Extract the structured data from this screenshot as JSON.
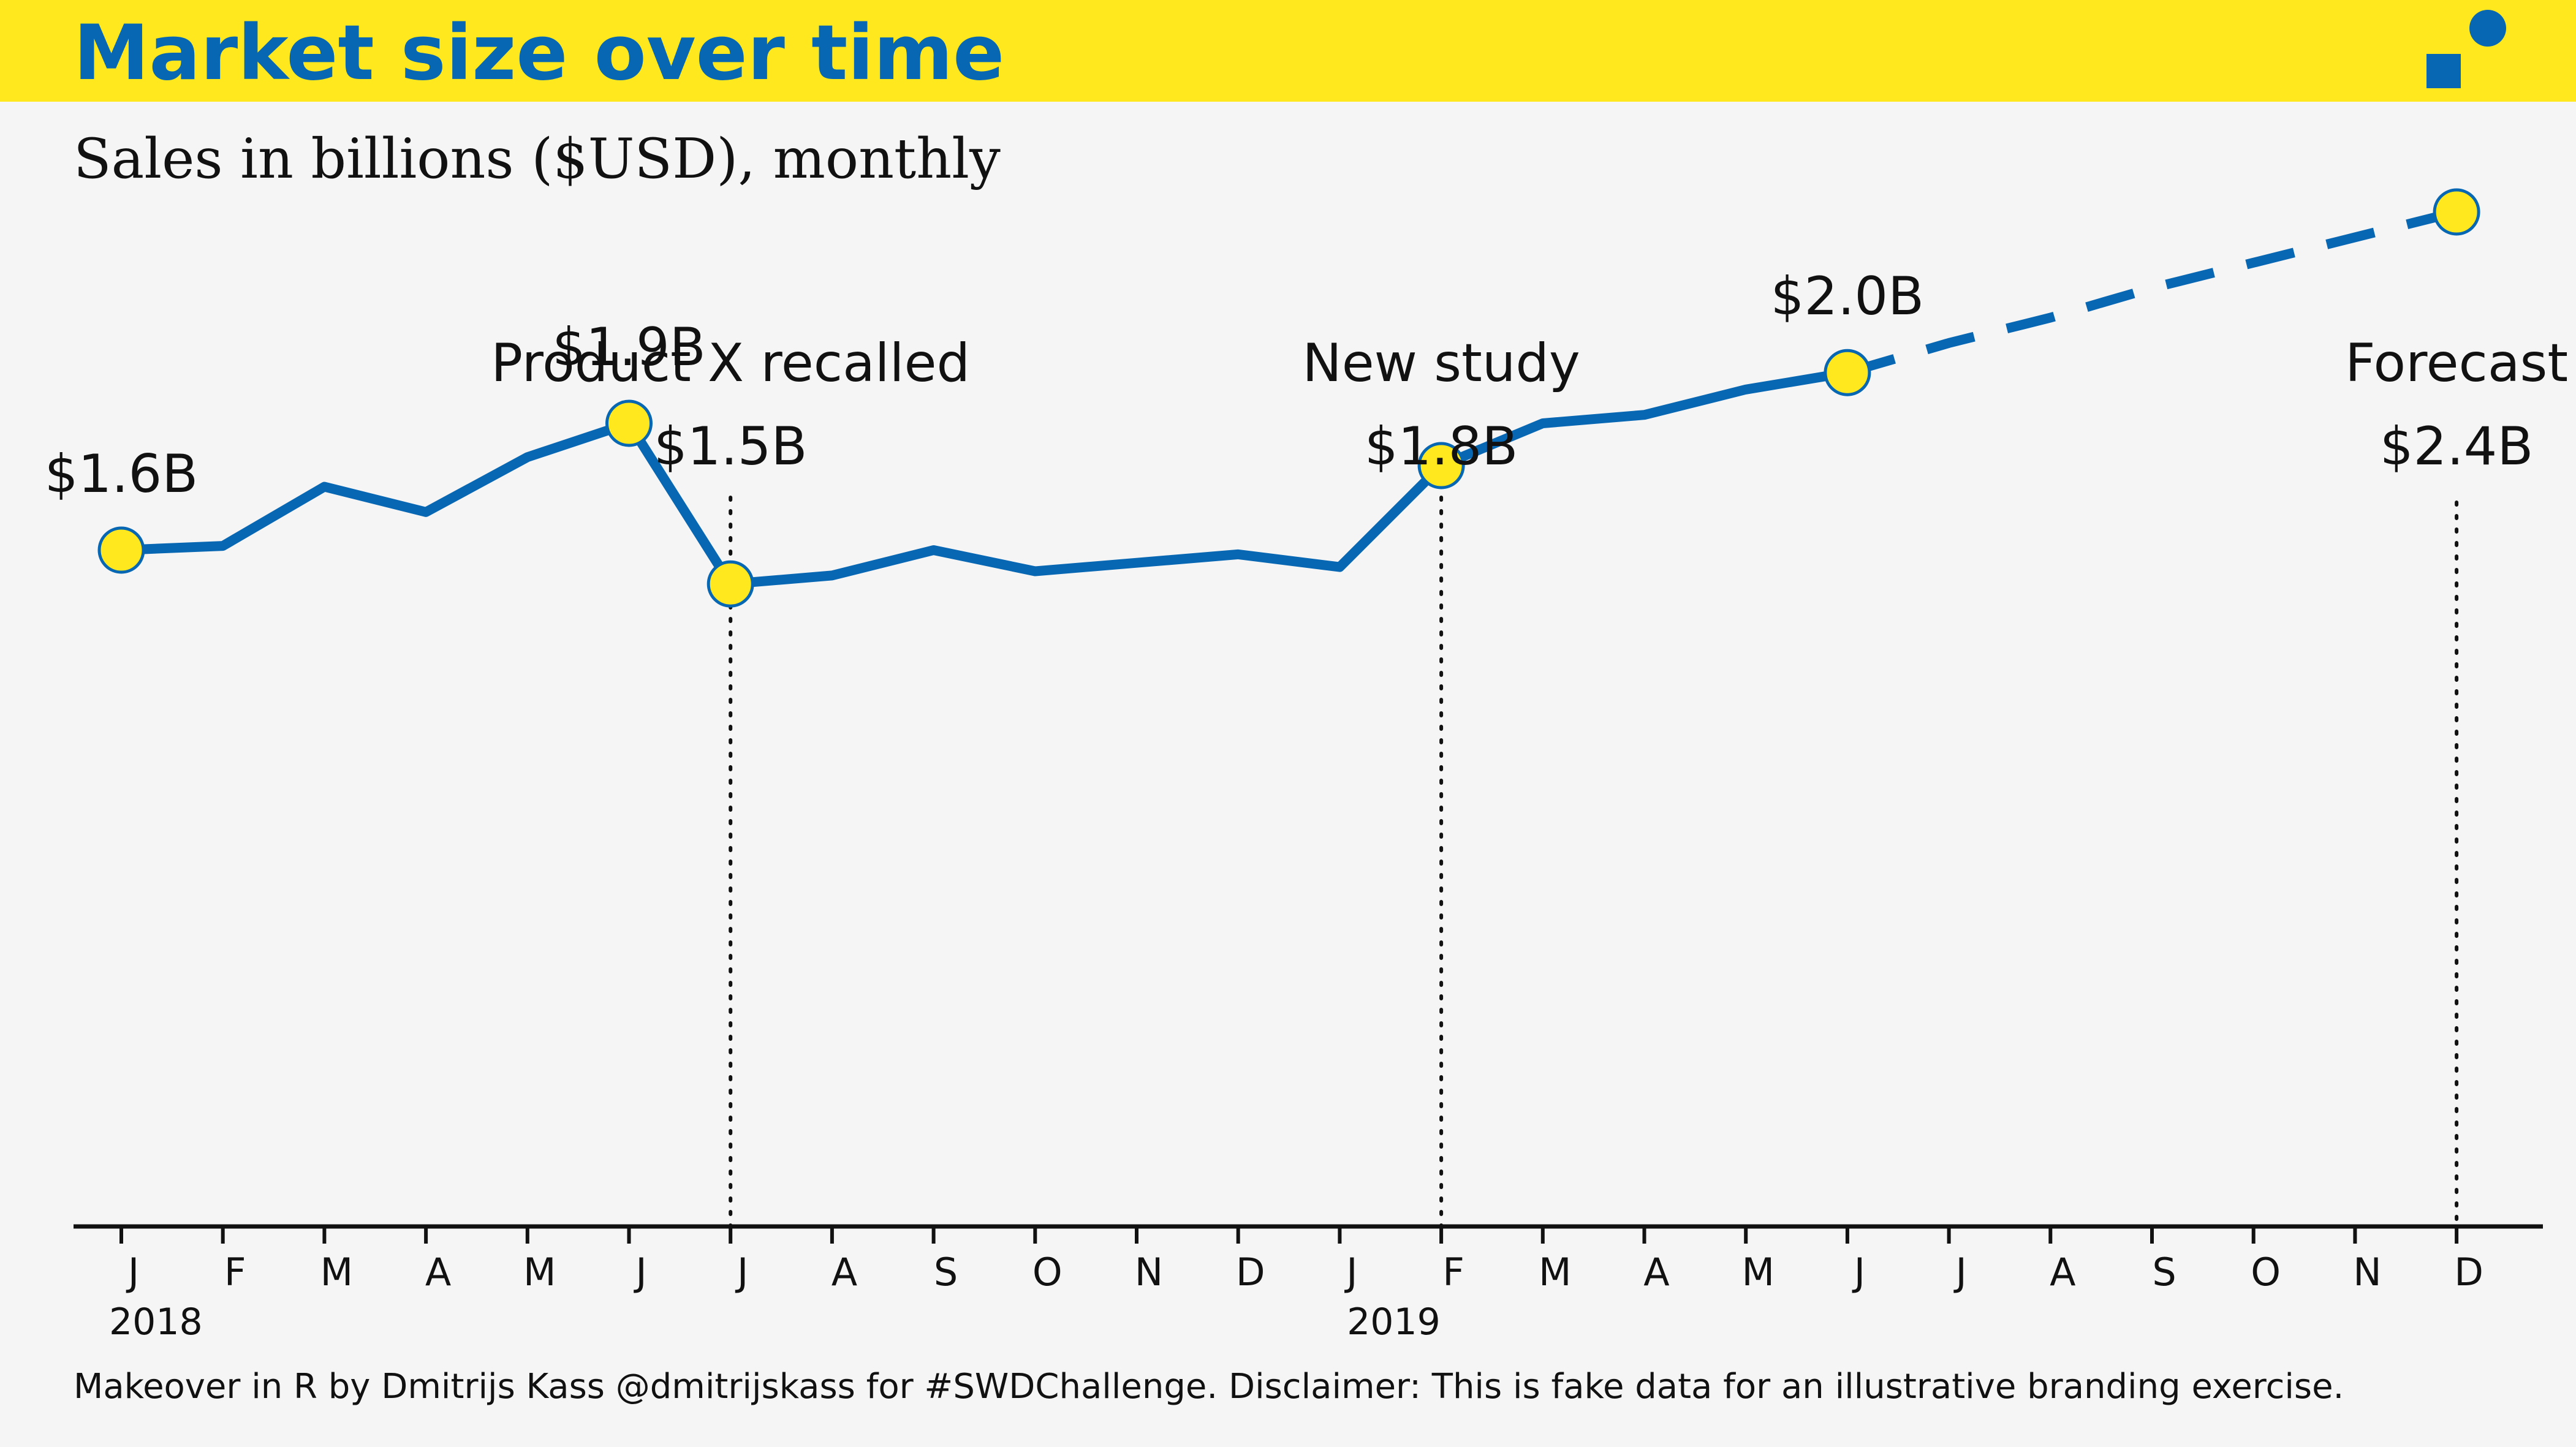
{
  "header": {
    "title": "Market size over time",
    "subtitle": "Sales in billions ($USD), monthly"
  },
  "caption": "Makeover in R by Dmitrijs Kass @dmitrijskass for #SWDChallenge. Disclaimer: This is fake data for an illustrative branding exercise.",
  "colors": {
    "brand_yellow": "#FFE81E",
    "brand_blue": "#0867B3",
    "background": "#F5F5F5",
    "text": "#111111"
  },
  "logo": {
    "icon": "brand-logo-square-and-circle-icon"
  },
  "chart_data": {
    "type": "line",
    "title": "Market size over time",
    "subtitle": "Sales in billions ($USD), monthly",
    "x_tick_labels": [
      "J",
      "F",
      "M",
      "A",
      "M",
      "J",
      "J",
      "A",
      "S",
      "O",
      "N",
      "D",
      "J",
      "F",
      "M",
      "A",
      "M",
      "J",
      "J",
      "A",
      "S",
      "O",
      "N",
      "D"
    ],
    "year_labels": [
      {
        "month_index": 0,
        "label": "2018"
      },
      {
        "month_index": 13,
        "label": "2019"
      }
    ],
    "x": [
      "2018-01",
      "2018-02",
      "2018-03",
      "2018-04",
      "2018-05",
      "2018-06",
      "2018-07",
      "2018-08",
      "2018-09",
      "2018-10",
      "2018-11",
      "2018-12",
      "2019-01",
      "2019-02",
      "2019-03",
      "2019-04",
      "2019-05",
      "2019-06",
      "2019-07",
      "2019-08",
      "2019-09",
      "2019-10",
      "2019-11",
      "2019-12"
    ],
    "series": [
      {
        "values": [
          1.6,
          1.61,
          1.75,
          1.69,
          1.82,
          1.9,
          1.52,
          1.54,
          1.6,
          1.55,
          1.57,
          1.59,
          1.56,
          1.8,
          1.9,
          1.92,
          1.98,
          2.02,
          null,
          null,
          null,
          null,
          null,
          null
        ],
        "style": "solid"
      },
      {
        "values": [
          null,
          null,
          null,
          null,
          null,
          null,
          null,
          null,
          null,
          null,
          null,
          null,
          null,
          null,
          null,
          null,
          null,
          2.02,
          2.09,
          2.15,
          2.22,
          2.28,
          2.34,
          2.4
        ],
        "style": "dashed"
      }
    ],
    "highlighted_points": [
      {
        "month_index": 0,
        "value": 1.6,
        "label": "$1.6B"
      },
      {
        "month_index": 5,
        "value": 1.9,
        "label": "$1.9B"
      },
      {
        "month_index": 6,
        "value": 1.5,
        "label": "$1.5B"
      },
      {
        "month_index": 13,
        "value": 1.8,
        "label": "$1.8B"
      },
      {
        "month_index": 17,
        "value": 2.0,
        "label": "$2.0B"
      },
      {
        "month_index": 23,
        "value": 2.4,
        "label": "$2.4B"
      }
    ],
    "annotations": [
      {
        "month_index": 6,
        "label": "Product X recalled"
      },
      {
        "month_index": 13,
        "label": "New study"
      },
      {
        "month_index": 23,
        "label": "Forecast"
      }
    ],
    "ylim": [
      0,
      2.6
    ],
    "xlabel": "",
    "ylabel": "",
    "grid": false,
    "legend": "none"
  }
}
